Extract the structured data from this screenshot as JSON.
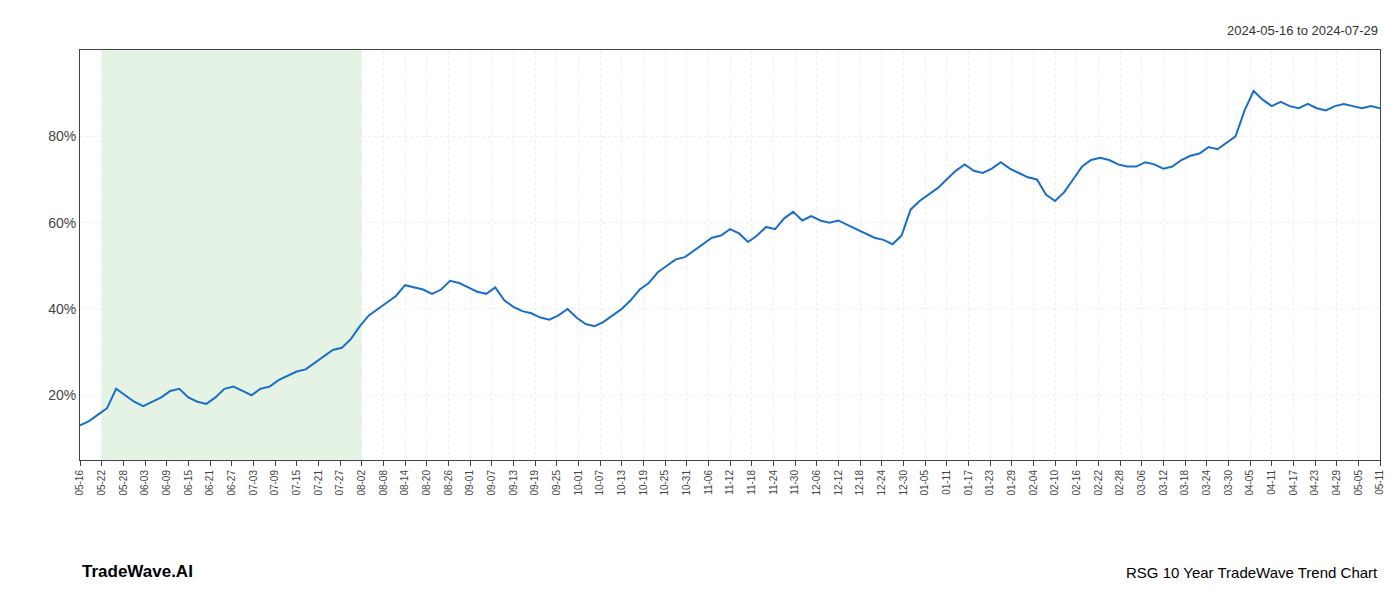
{
  "chart_data": {
    "type": "line",
    "title": "RSG 10 Year TradeWave Trend Chart",
    "annotations": [
      "2024-05-16 to 2024-07-29",
      "TradeWave.AI"
    ],
    "x": [
      0,
      0.416667,
      0.833333,
      1.25,
      1.666667,
      2.083333,
      2.5,
      2.916667,
      3.333333,
      3.75,
      4.166667,
      4.583333,
      5,
      5.416667,
      5.833333,
      6.25,
      6.666667,
      7.083333,
      7.5,
      7.916667,
      8.333333,
      8.75,
      9.166667,
      9.583333,
      10,
      10.416667,
      10.833333,
      11.25,
      11.666667,
      12.083333,
      12.5,
      12.916667,
      13.333333,
      13.75,
      14.166667,
      14.583333,
      15,
      15.416667,
      15.833333,
      16.25,
      16.666667,
      17.083333,
      17.5,
      17.916667,
      18.333333,
      18.75,
      19.166667,
      19.583333,
      20,
      20.416667,
      20.833333,
      21.25,
      21.666667,
      22.083333,
      22.5,
      22.916667,
      23.333333,
      23.75,
      24.166667,
      24.583333,
      25,
      25.416667,
      25.833333,
      26.25,
      26.666667,
      27.083333,
      27.5,
      27.916667,
      28.333333,
      28.75,
      29.166667,
      29.583333,
      30,
      30.416667,
      30.833333,
      31.25,
      31.666667,
      32.083333,
      32.5,
      32.916667,
      33.333333,
      33.75,
      34.166667,
      34.583333,
      35,
      35.416667,
      35.833333,
      36.25,
      36.666667,
      37.083333,
      37.5,
      37.916667,
      38.333333,
      38.75,
      39.166667,
      39.583333,
      40,
      40.416667,
      40.833333,
      41.25,
      41.666667,
      42.083333,
      42.5,
      42.916667,
      43.333333,
      43.75,
      44.166667,
      44.583333,
      45,
      45.416667,
      45.833333,
      46.25,
      46.666667,
      47.083333,
      47.5,
      47.916667,
      48.333333,
      48.75,
      49.166667,
      49.583333,
      50,
      50.416667,
      50.833333,
      51.25,
      51.666667,
      52.083333,
      52.5,
      52.916667,
      53.333333,
      53.75,
      54.166667,
      54.583333,
      55,
      55.416667,
      55.833333,
      56.25,
      56.666667,
      57.083333,
      57.5,
      57.916667,
      58.333333,
      58.75,
      59.166667,
      59.583333,
      60
    ],
    "values": [
      13.0,
      14.0,
      15.5,
      17.0,
      21.5,
      20.0,
      18.5,
      17.5,
      18.5,
      19.5,
      21.0,
      21.5,
      19.5,
      18.5,
      18.0,
      19.5,
      21.5,
      22.0,
      21.0,
      20.0,
      21.5,
      22.0,
      23.5,
      24.5,
      25.5,
      26.0,
      27.5,
      29.0,
      30.5,
      31.0,
      33.0,
      36.0,
      38.5,
      40.0,
      41.5,
      43.0,
      45.5,
      45.0,
      44.5,
      43.5,
      44.5,
      46.5,
      46.0,
      45.0,
      44.0,
      43.5,
      45.0,
      42.0,
      40.5,
      39.5,
      39.0,
      38.0,
      37.5,
      38.5,
      40.0,
      38.0,
      36.5,
      36.0,
      37.0,
      38.5,
      40.0,
      42.0,
      44.5,
      46.0,
      48.5,
      50.0,
      51.5,
      52.0,
      53.5,
      55.0,
      56.5,
      57.0,
      58.5,
      57.5,
      55.5,
      57.0,
      59.0,
      58.5,
      61.0,
      62.5,
      60.5,
      61.5,
      60.5,
      60.0,
      60.5,
      59.5,
      58.5,
      57.5,
      56.5,
      56.0,
      55.0,
      57.0,
      63.0,
      65.0,
      66.5,
      68.0,
      70.0,
      72.0,
      73.5,
      72.0,
      71.5,
      72.5,
      74.0,
      72.5,
      71.5,
      70.5,
      70.0,
      66.5,
      65.0,
      67.0,
      70.0,
      73.0,
      74.5,
      75.0,
      74.5,
      73.5,
      73.0,
      73.0,
      74.0,
      73.5,
      72.5,
      73.0,
      74.5,
      75.5,
      76.0,
      77.5,
      77.0,
      78.5,
      80.0,
      86.0,
      90.5,
      88.5,
      87.0,
      88.0,
      87.0,
      86.5,
      87.5,
      86.5,
      86.0,
      87.0,
      87.5,
      87.0,
      86.5,
      87.0,
      86.5
    ],
    "color": "#1a6fc4",
    "xlim": [
      0,
      60
    ],
    "xticks": [
      {
        "value": 0,
        "label": "05-16"
      },
      {
        "value": 1,
        "label": "05-22"
      },
      {
        "value": 2,
        "label": "05-28"
      },
      {
        "value": 3,
        "label": "06-03"
      },
      {
        "value": 4,
        "label": "06-09"
      },
      {
        "value": 5,
        "label": "06-15"
      },
      {
        "value": 6,
        "label": "06-21"
      },
      {
        "value": 7,
        "label": "06-27"
      },
      {
        "value": 8,
        "label": "07-03"
      },
      {
        "value": 9,
        "label": "07-09"
      },
      {
        "value": 10,
        "label": "07-15"
      },
      {
        "value": 11,
        "label": "07-21"
      },
      {
        "value": 12,
        "label": "07-27"
      },
      {
        "value": 13,
        "label": "08-02"
      },
      {
        "value": 14,
        "label": "08-08"
      },
      {
        "value": 15,
        "label": "08-14"
      },
      {
        "value": 16,
        "label": "08-20"
      },
      {
        "value": 17,
        "label": "08-26"
      },
      {
        "value": 18,
        "label": "09-01"
      },
      {
        "value": 19,
        "label": "09-07"
      },
      {
        "value": 20,
        "label": "09-13"
      },
      {
        "value": 21,
        "label": "09-19"
      },
      {
        "value": 22,
        "label": "09-25"
      },
      {
        "value": 23,
        "label": "10-01"
      },
      {
        "value": 24,
        "label": "10-07"
      },
      {
        "value": 25,
        "label": "10-13"
      },
      {
        "value": 26,
        "label": "10-19"
      },
      {
        "value": 27,
        "label": "10-25"
      },
      {
        "value": 28,
        "label": "10-31"
      },
      {
        "value": 29,
        "label": "11-06"
      },
      {
        "value": 30,
        "label": "11-12"
      },
      {
        "value": 31,
        "label": "11-18"
      },
      {
        "value": 32,
        "label": "11-24"
      },
      {
        "value": 33,
        "label": "11-30"
      },
      {
        "value": 34,
        "label": "12-06"
      },
      {
        "value": 35,
        "label": "12-12"
      },
      {
        "value": 36,
        "label": "12-18"
      },
      {
        "value": 37,
        "label": "12-24"
      },
      {
        "value": 38,
        "label": "12-30"
      },
      {
        "value": 39,
        "label": "01-05"
      },
      {
        "value": 40,
        "label": "01-11"
      },
      {
        "value": 41,
        "label": "01-17"
      },
      {
        "value": 42,
        "label": "01-23"
      },
      {
        "value": 43,
        "label": "01-29"
      },
      {
        "value": 44,
        "label": "02-04"
      },
      {
        "value": 45,
        "label": "02-10"
      },
      {
        "value": 46,
        "label": "02-16"
      },
      {
        "value": 47,
        "label": "02-22"
      },
      {
        "value": 48,
        "label": "02-28"
      },
      {
        "value": 49,
        "label": "03-06"
      },
      {
        "value": 50,
        "label": "03-12"
      },
      {
        "value": 51,
        "label": "03-18"
      },
      {
        "value": 52,
        "label": "03-24"
      },
      {
        "value": 53,
        "label": "03-30"
      },
      {
        "value": 54,
        "label": "04-05"
      },
      {
        "value": 55,
        "label": "04-11"
      },
      {
        "value": 56,
        "label": "04-17"
      },
      {
        "value": 57,
        "label": "04-23"
      },
      {
        "value": 58,
        "label": "04-29"
      },
      {
        "value": 59,
        "label": "05-05"
      },
      {
        "value": 60,
        "label": "05-11"
      }
    ],
    "ylim": [
      5,
      100
    ],
    "yticks": [
      {
        "value": 20,
        "label": "20%"
      },
      {
        "value": 40,
        "label": "40%"
      },
      {
        "value": 60,
        "label": "60%"
      },
      {
        "value": 80,
        "label": "80%"
      }
    ],
    "grid": true,
    "highlight": {
      "x": [
        1,
        13
      ],
      "color": "#d5ecd5"
    }
  }
}
